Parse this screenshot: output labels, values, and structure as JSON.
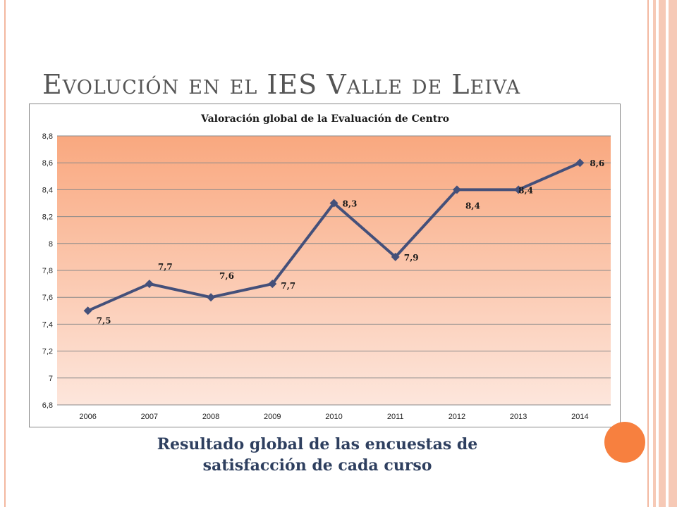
{
  "slide": {
    "title": "Evolución en el IES Valle de Leiva",
    "caption_line1": "Resultado global de las encuestas de",
    "caption_line2": "satisfacción de cada curso"
  },
  "colors": {
    "plot_top": "#f9a87f",
    "plot_bottom": "#fde6dc",
    "line": "#44507a",
    "accent_circle": "#f7803f",
    "frame": "#f3b8a0"
  },
  "chart_data": {
    "type": "line",
    "title": "Valoración global de la Evaluación de Centro",
    "x": [
      "2006",
      "2007",
      "2008",
      "2009",
      "2010",
      "2011",
      "2012",
      "2013",
      "2014"
    ],
    "series": [
      {
        "values": [
          7.5,
          7.7,
          7.6,
          7.7,
          8.3,
          7.9,
          8.4,
          8.4,
          8.6
        ],
        "labels": [
          "7,5",
          "7,7",
          "7,6",
          "7,7",
          "8,3",
          "7,9",
          "8,4",
          "8,4",
          "8,6"
        ]
      }
    ],
    "ylim": [
      6.8,
      8.8
    ],
    "yticks": [
      6.8,
      7,
      7.2,
      7.4,
      7.6,
      7.8,
      8,
      8.2,
      8.4,
      8.6,
      8.8
    ],
    "ytick_labels": [
      "6,8",
      "7",
      "7,2",
      "7,4",
      "7,6",
      "7,8",
      "8",
      "8,2",
      "8,4",
      "8,6",
      "8,8"
    ],
    "grid": true,
    "legend": "none"
  }
}
